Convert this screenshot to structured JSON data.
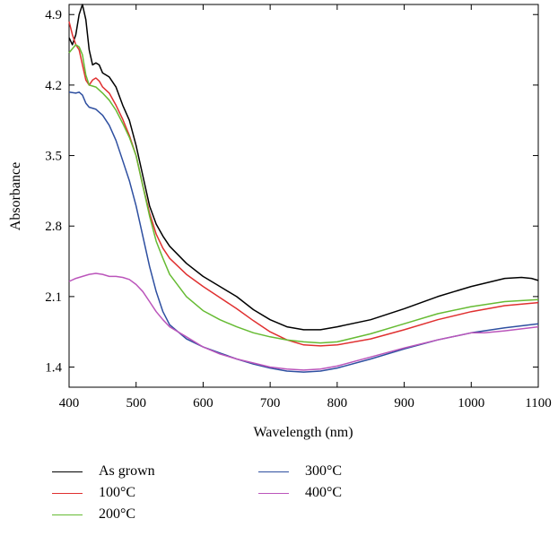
{
  "chart_data": {
    "type": "line",
    "title": "",
    "xlabel": "Wavelength (nm)",
    "ylabel": "Absorbance",
    "xlim": [
      400,
      1100
    ],
    "ylim": [
      1.2,
      5.0
    ],
    "x_ticks": [
      400,
      500,
      600,
      700,
      800,
      900,
      1000,
      1100
    ],
    "y_ticks": [
      1.4,
      2.1,
      2.8,
      3.5,
      4.2,
      4.9
    ],
    "grid": false,
    "legend_position": "bottom",
    "series": [
      {
        "name": "As grown",
        "color": "#000000",
        "points": [
          [
            400,
            4.67
          ],
          [
            405,
            4.6
          ],
          [
            410,
            4.7
          ],
          [
            415,
            4.9
          ],
          [
            420,
            5.0
          ],
          [
            425,
            4.85
          ],
          [
            430,
            4.55
          ],
          [
            435,
            4.4
          ],
          [
            440,
            4.42
          ],
          [
            445,
            4.4
          ],
          [
            450,
            4.32
          ],
          [
            460,
            4.28
          ],
          [
            470,
            4.18
          ],
          [
            480,
            4.0
          ],
          [
            490,
            3.85
          ],
          [
            500,
            3.6
          ],
          [
            510,
            3.3
          ],
          [
            520,
            3.0
          ],
          [
            530,
            2.82
          ],
          [
            540,
            2.7
          ],
          [
            550,
            2.6
          ],
          [
            575,
            2.43
          ],
          [
            600,
            2.3
          ],
          [
            625,
            2.2
          ],
          [
            650,
            2.1
          ],
          [
            675,
            1.97
          ],
          [
            700,
            1.87
          ],
          [
            725,
            1.8
          ],
          [
            750,
            1.77
          ],
          [
            775,
            1.77
          ],
          [
            800,
            1.8
          ],
          [
            850,
            1.87
          ],
          [
            900,
            1.98
          ],
          [
            950,
            2.1
          ],
          [
            1000,
            2.2
          ],
          [
            1050,
            2.28
          ],
          [
            1075,
            2.29
          ],
          [
            1090,
            2.28
          ],
          [
            1100,
            2.26
          ]
        ]
      },
      {
        "name": "100°C",
        "color": "#e03030",
        "points": [
          [
            400,
            4.83
          ],
          [
            405,
            4.7
          ],
          [
            410,
            4.6
          ],
          [
            415,
            4.55
          ],
          [
            420,
            4.4
          ],
          [
            425,
            4.25
          ],
          [
            430,
            4.2
          ],
          [
            435,
            4.25
          ],
          [
            440,
            4.27
          ],
          [
            445,
            4.24
          ],
          [
            450,
            4.18
          ],
          [
            460,
            4.12
          ],
          [
            470,
            4.0
          ],
          [
            480,
            3.86
          ],
          [
            490,
            3.7
          ],
          [
            500,
            3.5
          ],
          [
            510,
            3.2
          ],
          [
            520,
            2.93
          ],
          [
            530,
            2.72
          ],
          [
            540,
            2.58
          ],
          [
            550,
            2.48
          ],
          [
            575,
            2.32
          ],
          [
            600,
            2.2
          ],
          [
            625,
            2.09
          ],
          [
            650,
            1.98
          ],
          [
            675,
            1.86
          ],
          [
            700,
            1.75
          ],
          [
            725,
            1.67
          ],
          [
            750,
            1.62
          ],
          [
            775,
            1.61
          ],
          [
            800,
            1.62
          ],
          [
            850,
            1.68
          ],
          [
            900,
            1.77
          ],
          [
            950,
            1.87
          ],
          [
            1000,
            1.95
          ],
          [
            1050,
            2.01
          ],
          [
            1100,
            2.04
          ]
        ]
      },
      {
        "name": "200°C",
        "color": "#66bb33",
        "points": [
          [
            400,
            4.52
          ],
          [
            405,
            4.56
          ],
          [
            410,
            4.6
          ],
          [
            415,
            4.58
          ],
          [
            420,
            4.5
          ],
          [
            425,
            4.3
          ],
          [
            430,
            4.2
          ],
          [
            440,
            4.18
          ],
          [
            450,
            4.12
          ],
          [
            460,
            4.05
          ],
          [
            470,
            3.95
          ],
          [
            480,
            3.82
          ],
          [
            490,
            3.68
          ],
          [
            500,
            3.5
          ],
          [
            510,
            3.2
          ],
          [
            520,
            2.9
          ],
          [
            530,
            2.65
          ],
          [
            540,
            2.48
          ],
          [
            550,
            2.32
          ],
          [
            575,
            2.1
          ],
          [
            600,
            1.96
          ],
          [
            625,
            1.87
          ],
          [
            650,
            1.8
          ],
          [
            675,
            1.74
          ],
          [
            700,
            1.7
          ],
          [
            725,
            1.67
          ],
          [
            750,
            1.65
          ],
          [
            775,
            1.64
          ],
          [
            800,
            1.65
          ],
          [
            850,
            1.73
          ],
          [
            900,
            1.83
          ],
          [
            950,
            1.93
          ],
          [
            1000,
            2.0
          ],
          [
            1050,
            2.05
          ],
          [
            1100,
            2.07
          ]
        ]
      },
      {
        "name": "300°C",
        "color": "#2e4fa0",
        "points": [
          [
            400,
            4.13
          ],
          [
            410,
            4.12
          ],
          [
            415,
            4.13
          ],
          [
            420,
            4.1
          ],
          [
            425,
            4.02
          ],
          [
            430,
            3.98
          ],
          [
            440,
            3.96
          ],
          [
            450,
            3.9
          ],
          [
            460,
            3.8
          ],
          [
            470,
            3.65
          ],
          [
            480,
            3.45
          ],
          [
            490,
            3.25
          ],
          [
            500,
            3.0
          ],
          [
            510,
            2.7
          ],
          [
            520,
            2.4
          ],
          [
            530,
            2.15
          ],
          [
            540,
            1.95
          ],
          [
            550,
            1.82
          ],
          [
            575,
            1.68
          ],
          [
            600,
            1.6
          ],
          [
            625,
            1.54
          ],
          [
            650,
            1.48
          ],
          [
            675,
            1.43
          ],
          [
            700,
            1.39
          ],
          [
            725,
            1.36
          ],
          [
            750,
            1.35
          ],
          [
            775,
            1.36
          ],
          [
            800,
            1.39
          ],
          [
            850,
            1.48
          ],
          [
            900,
            1.58
          ],
          [
            950,
            1.67
          ],
          [
            1000,
            1.74
          ],
          [
            1050,
            1.79
          ],
          [
            1100,
            1.83
          ]
        ]
      },
      {
        "name": "400°C",
        "color": "#bb55bb",
        "points": [
          [
            400,
            2.25
          ],
          [
            410,
            2.28
          ],
          [
            420,
            2.3
          ],
          [
            430,
            2.32
          ],
          [
            440,
            2.33
          ],
          [
            450,
            2.32
          ],
          [
            460,
            2.3
          ],
          [
            470,
            2.3
          ],
          [
            480,
            2.29
          ],
          [
            490,
            2.27
          ],
          [
            500,
            2.22
          ],
          [
            510,
            2.15
          ],
          [
            520,
            2.05
          ],
          [
            530,
            1.95
          ],
          [
            540,
            1.87
          ],
          [
            550,
            1.8
          ],
          [
            575,
            1.7
          ],
          [
            600,
            1.6
          ],
          [
            625,
            1.53
          ],
          [
            650,
            1.48
          ],
          [
            675,
            1.44
          ],
          [
            700,
            1.4
          ],
          [
            725,
            1.38
          ],
          [
            750,
            1.37
          ],
          [
            775,
            1.38
          ],
          [
            800,
            1.41
          ],
          [
            850,
            1.5
          ],
          [
            900,
            1.59
          ],
          [
            950,
            1.67
          ],
          [
            1000,
            1.74
          ],
          [
            1020,
            1.74
          ],
          [
            1050,
            1.76
          ],
          [
            1100,
            1.8
          ]
        ]
      }
    ]
  }
}
